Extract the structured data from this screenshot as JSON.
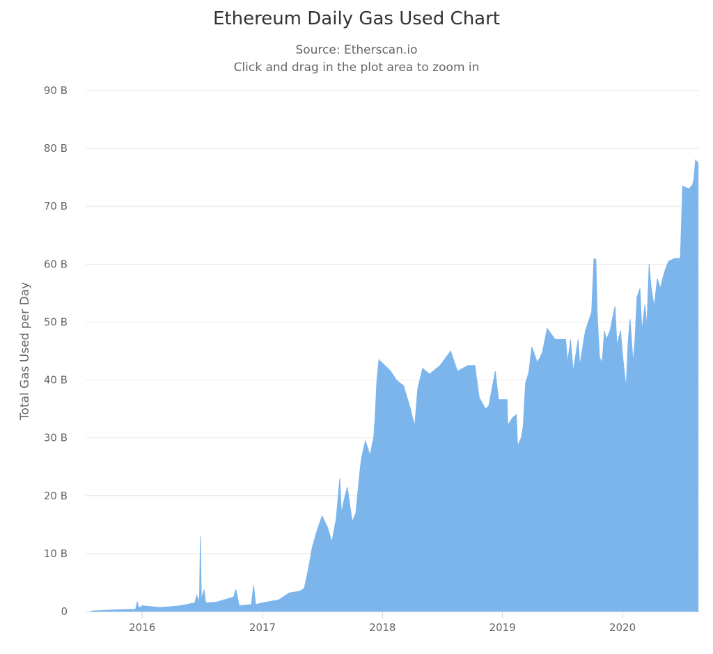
{
  "chart_data": {
    "type": "area",
    "title": "Ethereum Daily Gas Used Chart",
    "subtitle": "Source: Etherscan.io",
    "subtitle2": "Click and drag in the plot area to zoom in",
    "xlabel": "",
    "ylabel": "Total Gas Used per Day",
    "unit": "B",
    "xlim": [
      "2015-07-13",
      "2020-08-23"
    ],
    "ylim": [
      0,
      90
    ],
    "grid": true,
    "legend": "none",
    "color": "#7cb5ec",
    "x_ticks": [
      "2016",
      "2017",
      "2018",
      "2019",
      "2020"
    ],
    "y_ticks": [
      "0",
      "10 B",
      "20 B",
      "30 B",
      "40 B",
      "50 B",
      "60 B",
      "70 B",
      "80 B",
      "90 B"
    ],
    "series": [
      {
        "points": [
          [
            "2015-07-30",
            0.1
          ],
          [
            "2015-10-18",
            0.3
          ],
          [
            "2015-12-12",
            0.4
          ],
          [
            "2015-12-17",
            1.7
          ],
          [
            "2015-12-22",
            0.6
          ],
          [
            "2016-01-01",
            1.0
          ],
          [
            "2016-02-23",
            0.7
          ],
          [
            "2016-04-27",
            1.0
          ],
          [
            "2016-06-09",
            1.5
          ],
          [
            "2016-06-15",
            2.8
          ],
          [
            "2016-06-23",
            1.6
          ],
          [
            "2016-06-26",
            13.0
          ],
          [
            "2016-06-29",
            2.0
          ],
          [
            "2016-07-07",
            3.8
          ],
          [
            "2016-07-12",
            1.5
          ],
          [
            "2016-08-12",
            1.6
          ],
          [
            "2016-10-05",
            2.5
          ],
          [
            "2016-10-12",
            3.8
          ],
          [
            "2016-10-22",
            1.0
          ],
          [
            "2016-11-28",
            1.2
          ],
          [
            "2016-12-05",
            4.5
          ],
          [
            "2016-12-11",
            1.2
          ],
          [
            "2017-01-01",
            1.5
          ],
          [
            "2017-02-19",
            2.0
          ],
          [
            "2017-03-23",
            3.2
          ],
          [
            "2017-04-24",
            3.5
          ],
          [
            "2017-05-08",
            4.0
          ],
          [
            "2017-05-21",
            7.5
          ],
          [
            "2017-06-01",
            11.0
          ],
          [
            "2017-06-16",
            14.0
          ],
          [
            "2017-07-01",
            16.5
          ],
          [
            "2017-07-18",
            14.5
          ],
          [
            "2017-07-31",
            12.0
          ],
          [
            "2017-08-13",
            16.0
          ],
          [
            "2017-08-24",
            23.0
          ],
          [
            "2017-08-29",
            17.0
          ],
          [
            "2017-09-05",
            19.0
          ],
          [
            "2017-09-16",
            21.5
          ],
          [
            "2017-10-01",
            15.5
          ],
          [
            "2017-10-12",
            17.0
          ],
          [
            "2017-10-22",
            23.0
          ],
          [
            "2017-10-29",
            26.5
          ],
          [
            "2017-11-10",
            29.5
          ],
          [
            "2017-11-24",
            27.0
          ],
          [
            "2017-12-05",
            30.0
          ],
          [
            "2017-12-09",
            33.0
          ],
          [
            "2017-12-15",
            40.0
          ],
          [
            "2017-12-21",
            43.5
          ],
          [
            "2018-01-26",
            41.5
          ],
          [
            "2018-02-12",
            40.0
          ],
          [
            "2018-03-06",
            39.0
          ],
          [
            "2018-03-27",
            35.0
          ],
          [
            "2018-04-09",
            32.0
          ],
          [
            "2018-04-18",
            38.5
          ],
          [
            "2018-05-03",
            42.0
          ],
          [
            "2018-05-24",
            41.0
          ],
          [
            "2018-06-25",
            42.5
          ],
          [
            "2018-07-27",
            45.0
          ],
          [
            "2018-08-17",
            41.5
          ],
          [
            "2018-09-18",
            42.5
          ],
          [
            "2018-10-09",
            42.5
          ],
          [
            "2018-10-22",
            37.0
          ],
          [
            "2018-11-10",
            35.0
          ],
          [
            "2018-11-20",
            35.5
          ],
          [
            "2018-12-10",
            41.5
          ],
          [
            "2018-12-20",
            36.6
          ],
          [
            "2019-01-15",
            36.6
          ],
          [
            "2019-01-17",
            32.2
          ],
          [
            "2019-02-01",
            33.5
          ],
          [
            "2019-02-12",
            34.0
          ],
          [
            "2019-02-16",
            28.6
          ],
          [
            "2019-02-27",
            30.0
          ],
          [
            "2019-03-05",
            32.0
          ],
          [
            "2019-03-12",
            39.5
          ],
          [
            "2019-03-22",
            41.3
          ],
          [
            "2019-03-31",
            45.7
          ],
          [
            "2019-04-17",
            43.0
          ],
          [
            "2019-05-02",
            44.7
          ],
          [
            "2019-05-17",
            48.9
          ],
          [
            "2019-06-10",
            47.0
          ],
          [
            "2019-07-12",
            47.0
          ],
          [
            "2019-07-18",
            43.0
          ],
          [
            "2019-07-27",
            47.0
          ],
          [
            "2019-08-04",
            41.5
          ],
          [
            "2019-08-19",
            47.0
          ],
          [
            "2019-08-24",
            42.5
          ],
          [
            "2019-09-10",
            48.5
          ],
          [
            "2019-09-29",
            51.7
          ],
          [
            "2019-10-06",
            60.9
          ],
          [
            "2019-10-12",
            60.9
          ],
          [
            "2019-10-16",
            51.5
          ],
          [
            "2019-10-23",
            43.9
          ],
          [
            "2019-10-31",
            43.0
          ],
          [
            "2019-11-07",
            48.5
          ],
          [
            "2019-11-13",
            47.0
          ],
          [
            "2019-11-24",
            48.5
          ],
          [
            "2019-12-09",
            52.7
          ],
          [
            "2019-12-15",
            46.0
          ],
          [
            "2019-12-26",
            48.5
          ],
          [
            "2020-01-01",
            44.5
          ],
          [
            "2020-01-12",
            38.6
          ],
          [
            "2020-01-18",
            46.6
          ],
          [
            "2020-01-24",
            50.5
          ],
          [
            "2020-02-02",
            43.0
          ],
          [
            "2020-02-08",
            47.0
          ],
          [
            "2020-02-14",
            54.3
          ],
          [
            "2020-02-23",
            55.8
          ],
          [
            "2020-02-29",
            48.5
          ],
          [
            "2020-03-09",
            53.0
          ],
          [
            "2020-03-15",
            49.4
          ],
          [
            "2020-03-22",
            60.0
          ],
          [
            "2020-03-28",
            56.0
          ],
          [
            "2020-04-06",
            52.7
          ],
          [
            "2020-04-16",
            57.5
          ],
          [
            "2020-04-25",
            55.8
          ],
          [
            "2020-05-03",
            57.7
          ],
          [
            "2020-05-10",
            59.0
          ],
          [
            "2020-05-20",
            60.5
          ],
          [
            "2020-06-08",
            61.0
          ],
          [
            "2020-06-25",
            61.0
          ],
          [
            "2020-07-02",
            73.5
          ],
          [
            "2020-07-21",
            73.0
          ],
          [
            "2020-08-01",
            73.7
          ],
          [
            "2020-08-05",
            74.7
          ],
          [
            "2020-08-10",
            78.0
          ],
          [
            "2020-08-18",
            77.5
          ]
        ]
      }
    ]
  }
}
